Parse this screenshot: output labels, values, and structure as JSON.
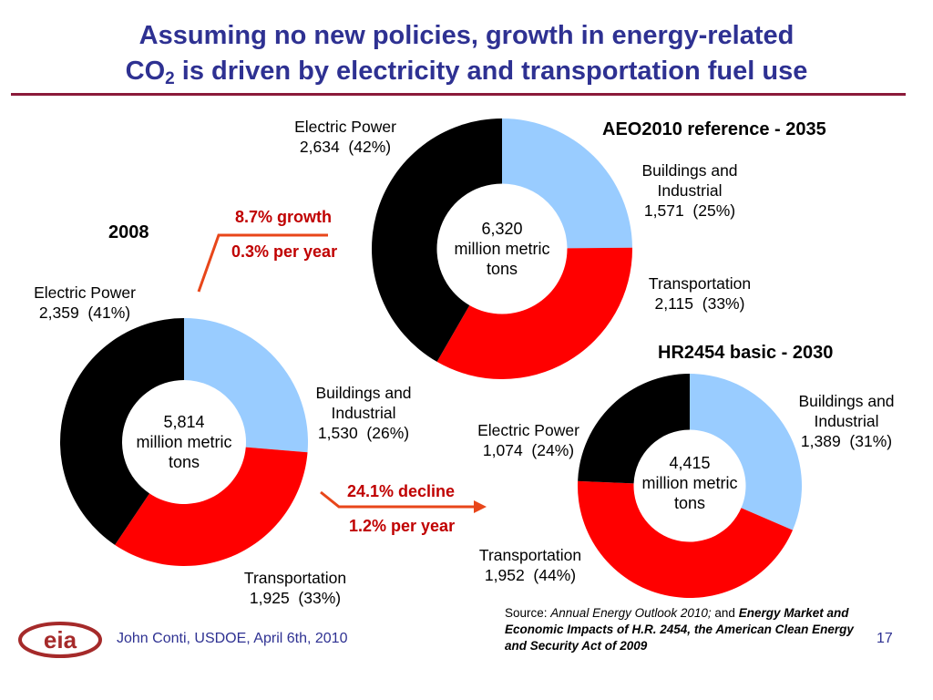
{
  "slide": {
    "title_line1": "Assuming no new policies, growth in energy-related",
    "title_line2_a": "CO",
    "title_line2_sub": "2",
    "title_line2_b": " is driven by electricity and transportation fuel use",
    "footer_author": "John Conti, USDOE, April 6th, 2010",
    "page_number": "17",
    "source_prefix": "Source: ",
    "source_italic": "Annual Energy Outlook 2010;",
    "source_and": " and ",
    "source_bold_italic": "Energy Market and Economic Impacts of H.R. 2454, the American Clean Energy and Security Act of 2009",
    "logo_text": "eia"
  },
  "arrows": {
    "growth": {
      "line1": "8.7% growth",
      "line2": "0.3% per year"
    },
    "decline": {
      "line1": "24.1% decline",
      "line2": "1.2% per year"
    }
  },
  "colors": {
    "buildings": "#99ccff",
    "transportation": "#ff0000",
    "electric": "#000000",
    "title": "#2e3192",
    "accent_red": "#c00000",
    "rule": "#8b1a3a"
  },
  "chart_data": [
    {
      "type": "pie",
      "title": "2008",
      "center_lines": [
        "5,814",
        "million metric",
        "tons"
      ],
      "slices": [
        {
          "name": "Buildings and Industrial",
          "value": 1530,
          "value_label": "1,530",
          "percent_label": "(26%)"
        },
        {
          "name": "Transportation",
          "value": 1925,
          "value_label": "1,925",
          "percent_label": "(33%)"
        },
        {
          "name": "Electric Power",
          "value": 2359,
          "value_label": "2,359",
          "percent_label": "(41%)"
        }
      ]
    },
    {
      "type": "pie",
      "title": "AEO2010 reference - 2035",
      "center_lines": [
        "6,320",
        "million metric",
        "tons"
      ],
      "slices": [
        {
          "name": "Buildings and Industrial",
          "value": 1571,
          "value_label": "1,571",
          "percent_label": "(25%)"
        },
        {
          "name": "Transportation",
          "value": 2115,
          "value_label": "2,115",
          "percent_label": "(33%)"
        },
        {
          "name": "Electric Power",
          "value": 2634,
          "value_label": "2,634",
          "percent_label": "(42%)"
        }
      ]
    },
    {
      "type": "pie",
      "title": "HR2454 basic - 2030",
      "center_lines": [
        "4,415",
        "million metric",
        "tons"
      ],
      "slices": [
        {
          "name": "Buildings and Industrial",
          "value": 1389,
          "value_label": "1,389",
          "percent_label": "(31%)"
        },
        {
          "name": "Transportation",
          "value": 1952,
          "value_label": "1,952",
          "percent_label": "(44%)"
        },
        {
          "name": "Electric Power",
          "value": 1074,
          "value_label": "1,074",
          "percent_label": "(24%)"
        }
      ]
    }
  ]
}
